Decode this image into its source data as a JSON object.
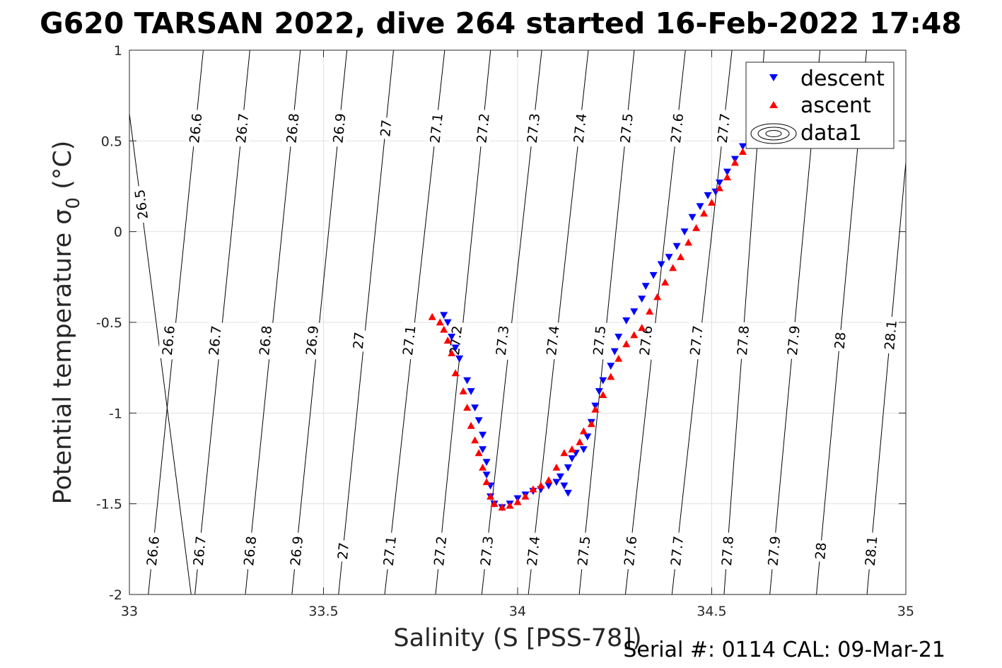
{
  "chart_data": {
    "type": "scatter",
    "title": "G620 TARSAN 2022, dive 264 started 16-Feb-2022 17:48",
    "xlabel": "Salinity (S [PSS-78])",
    "ylabel_main": "Potential temperature ",
    "ylabel_sigma": "σ",
    "ylabel_sub": "0",
    "ylabel_unit": " (°C)",
    "footer": "Serial #: 0114  CAL: 09-Mar-21",
    "xlim": [
      33,
      35
    ],
    "ylim": [
      -2,
      1
    ],
    "x_ticks": [
      33,
      33.5,
      34,
      34.5,
      35
    ],
    "x_tick_labels": [
      "33",
      "33.5",
      "34",
      "34.5",
      "35"
    ],
    "y_ticks": [
      1,
      0.5,
      0,
      -0.5,
      -1,
      -1.5,
      -2
    ],
    "y_tick_labels": [
      "1",
      "0.5",
      "0",
      "-0.5",
      "-1",
      "-1.5",
      "-2"
    ],
    "grid": true,
    "legend_position": "top-right",
    "legend": [
      {
        "label": "descent",
        "marker": "triangle-down",
        "color": "#0000ff"
      },
      {
        "label": "ascent",
        "marker": "triangle-up",
        "color": "#ff0000"
      },
      {
        "label": "data1",
        "marker": "contour",
        "color": "#000000"
      }
    ],
    "isopycnals": [
      {
        "value": "26.5",
        "labels": [
          [
            33.03,
            0.15
          ]
        ]
      },
      {
        "value": "26.6",
        "labels": [
          [
            33.17,
            0.57
          ],
          [
            33.1,
            -0.6
          ],
          [
            33.06,
            -1.76
          ]
        ]
      },
      {
        "value": "26.7",
        "labels": [
          [
            33.29,
            0.57
          ],
          [
            33.22,
            -0.6
          ],
          [
            33.18,
            -1.76
          ]
        ]
      },
      {
        "value": "26.8",
        "labels": [
          [
            33.42,
            0.57
          ],
          [
            33.35,
            -0.6
          ],
          [
            33.31,
            -1.76
          ]
        ]
      },
      {
        "value": "26.9",
        "labels": [
          [
            33.54,
            0.57
          ],
          [
            33.47,
            -0.6
          ],
          [
            33.43,
            -1.76
          ]
        ]
      },
      {
        "value": "27",
        "labels": [
          [
            33.66,
            0.57
          ],
          [
            33.59,
            -0.6
          ],
          [
            33.55,
            -1.76
          ]
        ]
      },
      {
        "value": "27.1",
        "labels": [
          [
            33.79,
            0.57
          ],
          [
            33.72,
            -0.6
          ],
          [
            33.67,
            -1.76
          ]
        ]
      },
      {
        "value": "27.2",
        "labels": [
          [
            33.91,
            0.57
          ],
          [
            33.84,
            -0.6
          ],
          [
            33.8,
            -1.76
          ]
        ]
      },
      {
        "value": "27.3",
        "labels": [
          [
            34.04,
            0.57
          ],
          [
            33.96,
            -0.6
          ],
          [
            33.92,
            -1.76
          ]
        ]
      },
      {
        "value": "27.4",
        "labels": [
          [
            34.16,
            0.57
          ],
          [
            34.09,
            -0.6
          ],
          [
            34.04,
            -1.76
          ]
        ]
      },
      {
        "value": "27.5",
        "labels": [
          [
            34.28,
            0.57
          ],
          [
            34.21,
            -0.6
          ],
          [
            34.17,
            -1.76
          ]
        ]
      },
      {
        "value": "27.6",
        "labels": [
          [
            34.41,
            0.57
          ],
          [
            34.33,
            -0.6
          ],
          [
            34.29,
            -1.76
          ]
        ]
      },
      {
        "value": "27.7",
        "labels": [
          [
            34.53,
            0.57
          ],
          [
            34.46,
            -0.6
          ],
          [
            34.41,
            -1.76
          ]
        ]
      },
      {
        "value": "27.8",
        "labels": [
          [
            34.58,
            -0.6
          ],
          [
            34.54,
            -1.76
          ]
        ]
      },
      {
        "value": "27.9",
        "labels": [
          [
            34.71,
            -0.6
          ],
          [
            34.66,
            -1.76
          ]
        ]
      },
      {
        "value": "28",
        "labels": [
          [
            34.83,
            -0.6
          ],
          [
            34.78,
            -1.76
          ]
        ]
      },
      {
        "value": "28.1",
        "labels": [
          [
            34.96,
            -0.57
          ],
          [
            34.91,
            -1.76
          ]
        ]
      }
    ],
    "descent": [
      [
        33.81,
        -0.46
      ],
      [
        33.82,
        -0.5
      ],
      [
        33.83,
        -0.58
      ],
      [
        33.84,
        -0.64
      ],
      [
        33.85,
        -0.7
      ],
      [
        33.87,
        -0.82
      ],
      [
        33.88,
        -0.88
      ],
      [
        33.89,
        -0.97
      ],
      [
        33.9,
        -1.04
      ],
      [
        33.91,
        -1.12
      ],
      [
        33.91,
        -1.2
      ],
      [
        33.92,
        -1.27
      ],
      [
        33.92,
        -1.34
      ],
      [
        33.93,
        -1.4
      ],
      [
        33.93,
        -1.46
      ],
      [
        33.94,
        -1.5
      ],
      [
        33.96,
        -1.52
      ],
      [
        33.98,
        -1.5
      ],
      [
        34.0,
        -1.47
      ],
      [
        34.02,
        -1.45
      ],
      [
        34.04,
        -1.43
      ],
      [
        34.06,
        -1.42
      ],
      [
        34.08,
        -1.4
      ],
      [
        34.1,
        -1.38
      ],
      [
        34.11,
        -1.35
      ],
      [
        34.12,
        -1.4
      ],
      [
        34.13,
        -1.44
      ],
      [
        34.13,
        -1.3
      ],
      [
        34.14,
        -1.25
      ],
      [
        34.15,
        -1.22
      ],
      [
        34.17,
        -1.2
      ],
      [
        34.18,
        -1.13
      ],
      [
        34.19,
        -1.05
      ],
      [
        34.2,
        -0.96
      ],
      [
        34.21,
        -0.88
      ],
      [
        34.22,
        -0.82
      ],
      [
        34.24,
        -0.74
      ],
      [
        34.25,
        -0.66
      ],
      [
        34.26,
        -0.58
      ],
      [
        34.28,
        -0.49
      ],
      [
        34.3,
        -0.44
      ],
      [
        34.32,
        -0.37
      ],
      [
        34.33,
        -0.3
      ],
      [
        34.35,
        -0.24
      ],
      [
        34.37,
        -0.18
      ],
      [
        34.39,
        -0.14
      ],
      [
        34.41,
        -0.08
      ],
      [
        34.43,
        0.0
      ],
      [
        34.45,
        0.08
      ],
      [
        34.47,
        0.14
      ],
      [
        34.49,
        0.2
      ],
      [
        34.51,
        0.22
      ],
      [
        34.52,
        0.27
      ],
      [
        34.54,
        0.33
      ],
      [
        34.56,
        0.4
      ],
      [
        34.58,
        0.47
      ],
      [
        34.6,
        0.52
      ]
    ],
    "ascent": [
      [
        33.78,
        -0.47
      ],
      [
        33.8,
        -0.5
      ],
      [
        33.81,
        -0.54
      ],
      [
        33.82,
        -0.6
      ],
      [
        33.83,
        -0.67
      ],
      [
        33.84,
        -0.78
      ],
      [
        33.86,
        -0.88
      ],
      [
        33.87,
        -0.97
      ],
      [
        33.88,
        -1.07
      ],
      [
        33.89,
        -1.15
      ],
      [
        33.9,
        -1.22
      ],
      [
        33.91,
        -1.3
      ],
      [
        33.92,
        -1.38
      ],
      [
        33.93,
        -1.46
      ],
      [
        33.94,
        -1.5
      ],
      [
        33.96,
        -1.52
      ],
      [
        33.98,
        -1.51
      ],
      [
        34.0,
        -1.49
      ],
      [
        34.02,
        -1.46
      ],
      [
        34.04,
        -1.42
      ],
      [
        34.06,
        -1.4
      ],
      [
        34.08,
        -1.37
      ],
      [
        34.1,
        -1.3
      ],
      [
        34.12,
        -1.22
      ],
      [
        34.14,
        -1.2
      ],
      [
        34.16,
        -1.16
      ],
      [
        34.17,
        -1.1
      ],
      [
        34.19,
        -1.06
      ],
      [
        34.2,
        -0.98
      ],
      [
        34.22,
        -0.9
      ],
      [
        34.24,
        -0.8
      ],
      [
        34.26,
        -0.7
      ],
      [
        34.28,
        -0.62
      ],
      [
        34.3,
        -0.57
      ],
      [
        34.32,
        -0.53
      ],
      [
        34.34,
        -0.44
      ],
      [
        34.36,
        -0.36
      ],
      [
        34.38,
        -0.28
      ],
      [
        34.4,
        -0.2
      ],
      [
        34.42,
        -0.14
      ],
      [
        34.44,
        -0.06
      ],
      [
        34.46,
        0.02
      ],
      [
        34.48,
        0.1
      ],
      [
        34.5,
        0.16
      ],
      [
        34.52,
        0.24
      ],
      [
        34.54,
        0.3
      ],
      [
        34.56,
        0.38
      ],
      [
        34.58,
        0.44
      ],
      [
        34.6,
        0.5
      ]
    ]
  }
}
